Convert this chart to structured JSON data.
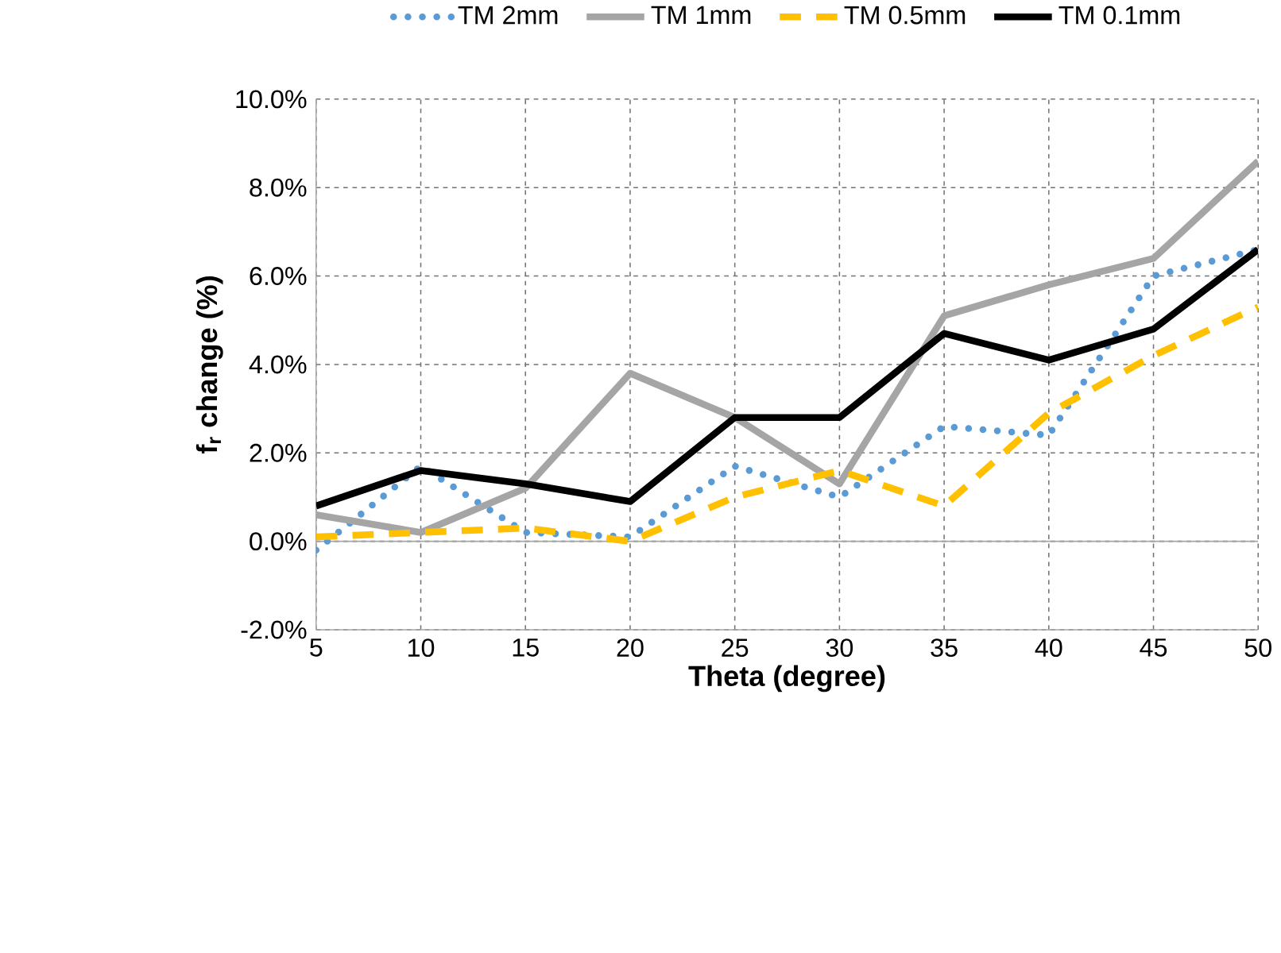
{
  "chart_data": {
    "type": "line",
    "xlabel": "Theta (degree)",
    "ylabel": "f$_{r}$ change (%)",
    "x": [
      5,
      10,
      15,
      20,
      25,
      30,
      35,
      40,
      45,
      50
    ],
    "series": [
      {
        "name": "TM  2mm",
        "color": "#5b9bd5",
        "line_style": "dotted",
        "values": [
          -0.2,
          1.7,
          0.2,
          0.1,
          1.7,
          1.0,
          2.6,
          2.4,
          6.0,
          6.6
        ]
      },
      {
        "name": "TM  1mm",
        "color": "#a5a5a5",
        "line_style": "solid",
        "values": [
          0.6,
          0.2,
          1.2,
          3.8,
          2.8,
          1.3,
          5.1,
          5.8,
          6.4,
          8.6
        ]
      },
      {
        "name": "TM  0.5mm",
        "color": "#ffc000",
        "line_style": "dashed",
        "values": [
          0.1,
          0.2,
          0.3,
          0.0,
          1.0,
          1.6,
          0.8,
          2.9,
          4.2,
          5.3
        ]
      },
      {
        "name": "TM  0.1mm",
        "color": "#000000",
        "line_style": "solid",
        "values": [
          0.8,
          1.6,
          1.3,
          0.9,
          2.8,
          2.8,
          4.7,
          4.1,
          4.8,
          6.6
        ]
      }
    ],
    "xlim": [
      5,
      50
    ],
    "xticks": [
      5,
      10,
      15,
      20,
      25,
      30,
      35,
      40,
      45,
      50
    ],
    "ylim": [
      -2,
      10
    ],
    "yticks": [
      {
        "value": -2,
        "label": "-2.0%"
      },
      {
        "value": 0,
        "label": "0.0%"
      },
      {
        "value": 2,
        "label": "2.0%"
      },
      {
        "value": 4,
        "label": "4.0%"
      },
      {
        "value": 6,
        "label": "6.0%"
      },
      {
        "value": 8,
        "label": "8.0%"
      },
      {
        "value": 10,
        "label": "10.0%"
      }
    ],
    "grid": true,
    "legend": "top"
  }
}
